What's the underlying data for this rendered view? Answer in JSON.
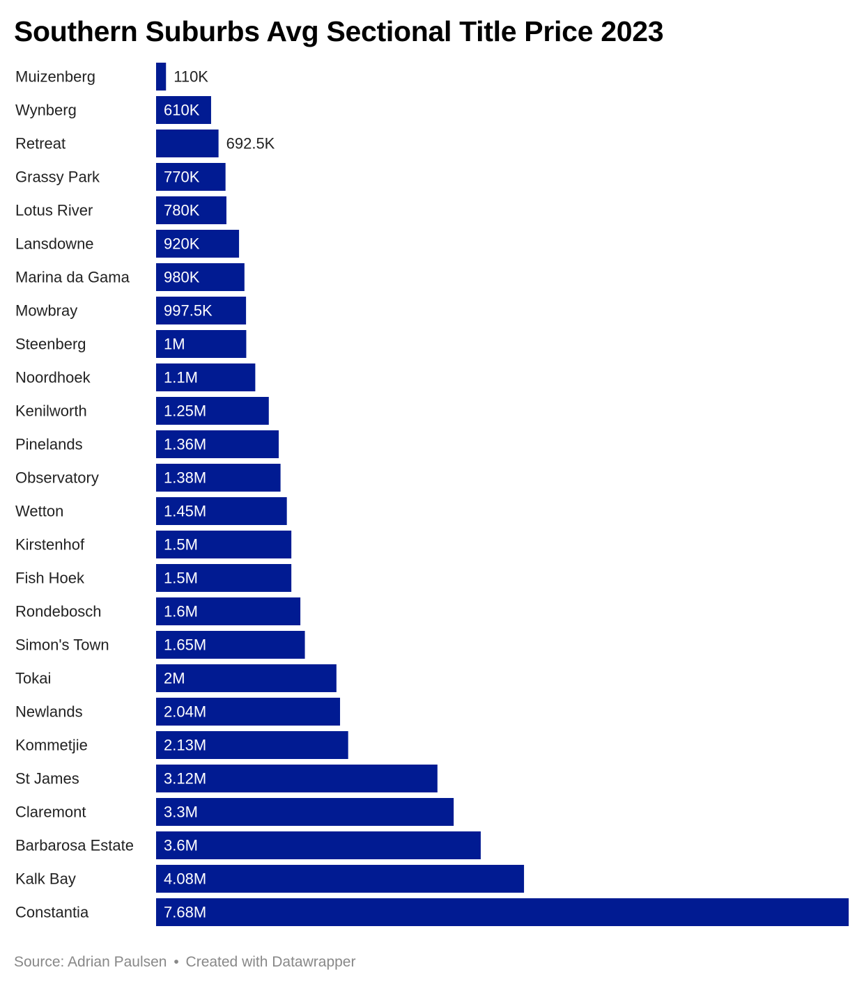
{
  "chart_data": {
    "type": "bar",
    "orientation": "horizontal",
    "title": "Southern Suburbs Avg Sectional Title Price 2023",
    "categories": [
      "Muizenberg",
      "Wynberg",
      "Retreat",
      "Grassy Park",
      "Lotus River",
      "Lansdowne",
      "Marina da Gama",
      "Mowbray",
      "Steenberg",
      "Noordhoek",
      "Kenilworth",
      "Pinelands",
      "Observatory",
      "Wetton",
      "Kirstenhof",
      "Fish Hoek",
      "Rondebosch",
      "Simon's Town",
      "Tokai",
      "Newlands",
      "Kommetjie",
      "St James",
      "Claremont",
      "Barbarosa Estate",
      "Kalk Bay",
      "Constantia"
    ],
    "values": [
      110000,
      610000,
      692500,
      770000,
      780000,
      920000,
      980000,
      997500,
      1000000,
      1100000,
      1250000,
      1360000,
      1380000,
      1450000,
      1500000,
      1500000,
      1600000,
      1650000,
      2000000,
      2040000,
      2130000,
      3120000,
      3300000,
      3600000,
      4080000,
      7680000
    ],
    "value_labels": [
      "110K",
      "610K",
      "692.5K",
      "770K",
      "780K",
      "920K",
      "980K",
      "997.5K",
      "1M",
      "1.1M",
      "1.25M",
      "1.36M",
      "1.38M",
      "1.45M",
      "1.5M",
      "1.5M",
      "1.6M",
      "1.65M",
      "2M",
      "2.04M",
      "2.13M",
      "3.12M",
      "3.3M",
      "3.6M",
      "4.08M",
      "7.68M"
    ],
    "label_outside": [
      true,
      false,
      true,
      false,
      false,
      false,
      false,
      false,
      false,
      false,
      false,
      false,
      false,
      false,
      false,
      false,
      false,
      false,
      false,
      false,
      false,
      false,
      false,
      false,
      false,
      false
    ],
    "xlim": [
      0,
      7680000
    ],
    "bar_color": "#011b92",
    "inside_label_color": "#ffffff",
    "outside_label_color": "#222222",
    "category_label_color": "#222222"
  },
  "footer": {
    "source": "Source: Adrian Paulsen",
    "separator": "•",
    "credit": "Created with Datawrapper"
  }
}
